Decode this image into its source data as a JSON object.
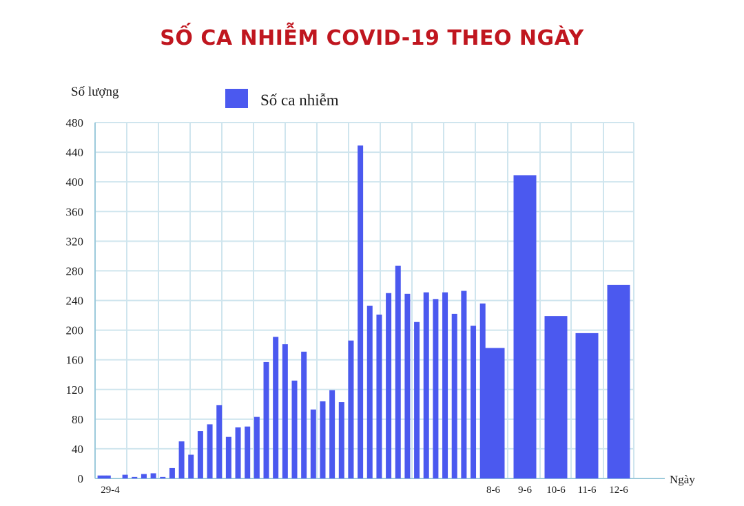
{
  "title": "SỐ CA NHIỄM COVID-19 THEO NGÀY",
  "colors": {
    "title": "#c0161f",
    "bar": "#4b59ef",
    "grid": "#cfe5ee",
    "axis": "#9ccadb"
  },
  "chart_data": {
    "type": "bar",
    "title": "SỐ CA NHIỄM COVID-19 THEO NGÀY",
    "ylabel": "Số lượng",
    "xlabel": "Ngày",
    "ylim": [
      0,
      480
    ],
    "yticks": [
      0,
      40,
      80,
      120,
      160,
      200,
      240,
      280,
      320,
      360,
      400,
      440,
      480
    ],
    "grid": true,
    "legend_position": "top-left",
    "series": [
      {
        "name": "Số ca nhiễm",
        "values": [
          4,
          4,
          4,
          5,
          2,
          6,
          7,
          2,
          14,
          50,
          32,
          64,
          73,
          99,
          56,
          69,
          70,
          83,
          157,
          191,
          181,
          132,
          171,
          93,
          104,
          119,
          103,
          186,
          449,
          233,
          221,
          250,
          287,
          249,
          211,
          251,
          242,
          251,
          222,
          253,
          206,
          236,
          176,
          409,
          219,
          196,
          261
        ]
      }
    ],
    "x_labels": [
      {
        "index": 0,
        "label": "29-4"
      },
      {
        "index": 42,
        "label": "8-6"
      },
      {
        "index": 43,
        "label": "9-6"
      },
      {
        "index": 44,
        "label": "10-6"
      },
      {
        "index": 45,
        "label": "11-6"
      },
      {
        "index": 46,
        "label": "12-6"
      }
    ]
  }
}
